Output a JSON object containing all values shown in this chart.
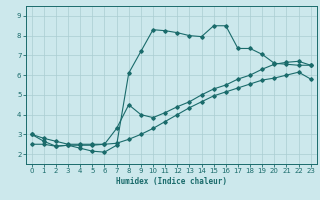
{
  "xlabel": "Humidex (Indice chaleur)",
  "bg_color": "#cce8ec",
  "grid_color": "#aacdd2",
  "line_color": "#1a6b6b",
  "xlim": [
    -0.5,
    23.5
  ],
  "ylim": [
    1.5,
    9.5
  ],
  "xticks": [
    0,
    1,
    2,
    3,
    4,
    5,
    6,
    7,
    8,
    9,
    10,
    11,
    12,
    13,
    14,
    15,
    16,
    17,
    18,
    19,
    20,
    21,
    22,
    23
  ],
  "yticks": [
    2,
    3,
    4,
    5,
    6,
    7,
    8,
    9
  ],
  "line1_x": [
    0,
    1,
    2,
    3,
    4,
    5,
    6,
    7,
    8,
    9,
    10,
    11,
    12,
    13,
    14,
    15,
    16,
    17,
    18,
    19,
    20,
    21,
    22,
    23
  ],
  "line1_y": [
    3.0,
    2.65,
    2.4,
    2.45,
    2.3,
    2.15,
    2.1,
    2.45,
    6.1,
    7.2,
    8.3,
    8.25,
    8.15,
    8.0,
    7.95,
    8.5,
    8.5,
    7.35,
    7.35,
    7.05,
    6.6,
    6.55,
    6.5,
    6.5
  ],
  "line2_x": [
    0,
    1,
    2,
    3,
    4,
    5,
    6,
    7,
    8,
    9,
    10,
    11,
    12,
    13,
    14,
    15,
    16,
    17,
    18,
    19,
    20,
    21,
    22,
    23
  ],
  "line2_y": [
    3.0,
    2.8,
    2.65,
    2.5,
    2.5,
    2.5,
    2.5,
    3.3,
    4.5,
    4.0,
    3.85,
    4.1,
    4.4,
    4.65,
    5.0,
    5.3,
    5.5,
    5.8,
    6.0,
    6.3,
    6.55,
    6.65,
    6.7,
    6.5
  ],
  "line3_x": [
    0,
    1,
    2,
    3,
    4,
    5,
    6,
    7,
    8,
    9,
    10,
    11,
    12,
    13,
    14,
    15,
    16,
    17,
    18,
    19,
    20,
    21,
    22,
    23
  ],
  "line3_y": [
    2.5,
    2.5,
    2.4,
    2.45,
    2.45,
    2.45,
    2.5,
    2.55,
    2.75,
    3.0,
    3.3,
    3.65,
    4.0,
    4.35,
    4.65,
    4.95,
    5.15,
    5.35,
    5.55,
    5.75,
    5.85,
    6.0,
    6.15,
    5.8
  ]
}
